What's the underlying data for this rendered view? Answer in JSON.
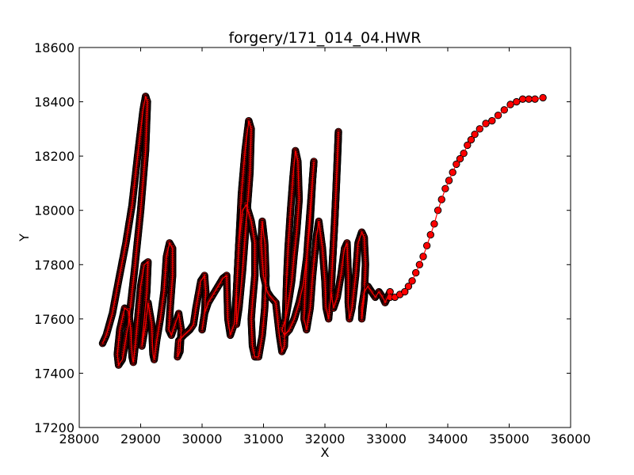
{
  "chart_data": {
    "type": "scatter",
    "title": "forgery/171_014_04.HWR",
    "xlabel": "X",
    "ylabel": "Y",
    "xlim": [
      28000,
      36000
    ],
    "ylim": [
      17200,
      18600
    ],
    "xticks": [
      28000,
      29000,
      30000,
      31000,
      32000,
      33000,
      34000,
      35000,
      36000
    ],
    "yticks": [
      17200,
      17400,
      17600,
      17800,
      18000,
      18200,
      18400,
      18600
    ],
    "xtick_labels": [
      "28000",
      "29000",
      "30000",
      "31000",
      "32000",
      "33000",
      "34000",
      "35000",
      "36000"
    ],
    "ytick_labels": [
      "17200",
      "17400",
      "17600",
      "17800",
      "18000",
      "18200",
      "18400",
      "18600"
    ],
    "grid": false,
    "marker_fill": "#ff0000",
    "marker_edge": "#000000",
    "line_color": "#ff0000",
    "series": [
      {
        "strokes": [
          [
            [
              28380,
              17510
            ],
            [
              28440,
              17540
            ],
            [
              28540,
              17620
            ],
            [
              28640,
              17740
            ],
            [
              28760,
              17880
            ],
            [
              28860,
              18020
            ],
            [
              28960,
              18220
            ],
            [
              29040,
              18370
            ],
            [
              29080,
              18420
            ],
            [
              29110,
              18400
            ],
            [
              29080,
              18220
            ],
            [
              29000,
              18000
            ],
            [
              28900,
              17780
            ],
            [
              28800,
              17580
            ],
            [
              28700,
              17450
            ],
            [
              28640,
              17430
            ],
            [
              28620,
              17470
            ],
            [
              28660,
              17560
            ],
            [
              28740,
              17640
            ],
            [
              28800,
              17630
            ]
          ],
          [
            [
              28800,
              17630
            ],
            [
              28840,
              17560
            ],
            [
              28860,
              17460
            ],
            [
              28880,
              17440
            ],
            [
              28920,
              17520
            ],
            [
              28960,
              17620
            ],
            [
              29000,
              17720
            ],
            [
              29060,
              17800
            ],
            [
              29120,
              17810
            ],
            [
              29100,
              17700
            ],
            [
              29040,
              17560
            ],
            [
              29020,
              17500
            ],
            [
              29080,
              17580
            ],
            [
              29120,
              17660
            ],
            [
              29180,
              17580
            ],
            [
              29200,
              17470
            ],
            [
              29220,
              17450
            ],
            [
              29260,
              17520
            ],
            [
              29320,
              17600
            ],
            [
              29380,
              17700
            ],
            [
              29420,
              17830
            ],
            [
              29470,
              17880
            ],
            [
              29520,
              17860
            ],
            [
              29520,
              17760
            ],
            [
              29480,
              17640
            ],
            [
              29460,
              17560
            ],
            [
              29500,
              17540
            ],
            [
              29560,
              17580
            ],
            [
              29620,
              17620
            ],
            [
              29660,
              17560
            ],
            [
              29640,
              17480
            ],
            [
              29600,
              17460
            ],
            [
              29620,
              17520
            ],
            [
              29700,
              17540
            ],
            [
              29800,
              17560
            ],
            [
              29860,
              17580
            ],
            [
              29900,
              17640
            ],
            [
              29980,
              17740
            ],
            [
              30040,
              17760
            ],
            [
              30060,
              17700
            ],
            [
              30040,
              17620
            ],
            [
              30000,
              17560
            ],
            [
              30040,
              17620
            ],
            [
              30100,
              17660
            ],
            [
              30180,
              17690
            ],
            [
              30260,
              17720
            ],
            [
              30340,
              17750
            ],
            [
              30400,
              17760
            ]
          ],
          [
            [
              30400,
              17760
            ],
            [
              30420,
              17600
            ],
            [
              30460,
              17540
            ],
            [
              30520,
              17580
            ],
            [
              30560,
              17700
            ],
            [
              30600,
              17880
            ],
            [
              30640,
              18060
            ],
            [
              30700,
              18220
            ],
            [
              30760,
              18330
            ],
            [
              30800,
              18300
            ],
            [
              30780,
              18140
            ],
            [
              30720,
              17960
            ],
            [
              30660,
              17780
            ],
            [
              30600,
              17640
            ],
            [
              30560,
              17580
            ],
            [
              30560,
              17700
            ],
            [
              30600,
              17880
            ],
            [
              30660,
              18000
            ],
            [
              30720,
              18020
            ],
            [
              30800,
              17960
            ],
            [
              30860,
              17880
            ],
            [
              30860,
              17760
            ],
            [
              30820,
              17660
            ],
            [
              30800,
              17600
            ],
            [
              30820,
              17500
            ],
            [
              30860,
              17460
            ],
            [
              30920,
              17460
            ],
            [
              30980,
              17540
            ],
            [
              31020,
              17640
            ],
            [
              31040,
              17760
            ],
            [
              31020,
              17880
            ],
            [
              30980,
              17960
            ],
            [
              30960,
              17880
            ],
            [
              31000,
              17760
            ],
            [
              31060,
              17700
            ],
            [
              31120,
              17680
            ],
            [
              31200,
              17660
            ]
          ],
          [
            [
              31200,
              17660
            ],
            [
              31260,
              17540
            ],
            [
              31300,
              17480
            ],
            [
              31340,
              17500
            ],
            [
              31360,
              17620
            ],
            [
              31380,
              17760
            ],
            [
              31400,
              17860
            ],
            [
              31440,
              18000
            ],
            [
              31480,
              18120
            ],
            [
              31520,
              18220
            ],
            [
              31560,
              18180
            ],
            [
              31580,
              18040
            ],
            [
              31540,
              17920
            ],
            [
              31500,
              17840
            ],
            [
              31460,
              17740
            ],
            [
              31420,
              17680
            ],
            [
              31360,
              17600
            ],
            [
              31300,
              17560
            ],
            [
              31340,
              17540
            ],
            [
              31420,
              17560
            ],
            [
              31500,
              17600
            ],
            [
              31580,
              17660
            ],
            [
              31640,
              17720
            ],
            [
              31700,
              17820
            ],
            [
              31760,
              17960
            ],
            [
              31800,
              18120
            ],
            [
              31820,
              18180
            ],
            [
              31780,
              18060
            ],
            [
              31720,
              17880
            ],
            [
              31680,
              17720
            ],
            [
              31660,
              17600
            ],
            [
              31700,
              17560
            ],
            [
              31760,
              17640
            ],
            [
              31800,
              17760
            ],
            [
              31860,
              17900
            ],
            [
              31900,
              17960
            ],
            [
              31960,
              17860
            ],
            [
              32000,
              17740
            ],
            [
              32020,
              17640
            ],
            [
              32060,
              17600
            ],
            [
              32100,
              17700
            ],
            [
              32140,
              17880
            ],
            [
              32180,
              18060
            ],
            [
              32210,
              18220
            ],
            [
              32220,
              18290
            ],
            [
              32200,
              18180
            ],
            [
              32160,
              17960
            ],
            [
              32120,
              17800
            ],
            [
              32100,
              17700
            ],
            [
              32140,
              17640
            ],
            [
              32200,
              17680
            ],
            [
              32260,
              17760
            ],
            [
              32320,
              17860
            ],
            [
              32360,
              17880
            ],
            [
              32380,
              17760
            ],
            [
              32380,
              17660
            ],
            [
              32400,
              17600
            ],
            [
              32440,
              17640
            ],
            [
              32500,
              17760
            ],
            [
              32540,
              17880
            ],
            [
              32600,
              17920
            ],
            [
              32640,
              17900
            ],
            [
              32660,
              17800
            ],
            [
              32640,
              17680
            ],
            [
              32600,
              17600
            ],
            [
              32600,
              17640
            ],
            [
              32640,
              17700
            ],
            [
              32700,
              17720
            ],
            [
              32760,
              17700
            ],
            [
              32820,
              17680
            ],
            [
              32880,
              17700
            ],
            [
              32940,
              17680
            ],
            [
              32980,
              17660
            ],
            [
              33020,
              17680
            ],
            [
              33060,
              17700
            ]
          ]
        ],
        "sparse": [
          [
            33060,
            17680
          ],
          [
            33140,
            17680
          ],
          [
            33220,
            17690
          ],
          [
            33300,
            17700
          ],
          [
            33360,
            17720
          ],
          [
            33420,
            17740
          ],
          [
            33480,
            17770
          ],
          [
            33540,
            17800
          ],
          [
            33600,
            17830
          ],
          [
            33660,
            17870
          ],
          [
            33720,
            17910
          ],
          [
            33780,
            17950
          ],
          [
            33840,
            18000
          ],
          [
            33900,
            18040
          ],
          [
            33960,
            18080
          ],
          [
            34020,
            18110
          ],
          [
            34080,
            18140
          ],
          [
            34140,
            18170
          ],
          [
            34200,
            18190
          ],
          [
            34260,
            18210
          ],
          [
            34320,
            18240
          ],
          [
            34380,
            18260
          ],
          [
            34440,
            18280
          ],
          [
            34520,
            18300
          ],
          [
            34620,
            18320
          ],
          [
            34720,
            18330
          ],
          [
            34820,
            18350
          ],
          [
            34920,
            18370
          ],
          [
            35020,
            18390
          ],
          [
            35120,
            18400
          ],
          [
            35220,
            18410
          ],
          [
            35320,
            18410
          ],
          [
            35420,
            18410
          ],
          [
            35550,
            18415
          ]
        ]
      }
    ]
  }
}
